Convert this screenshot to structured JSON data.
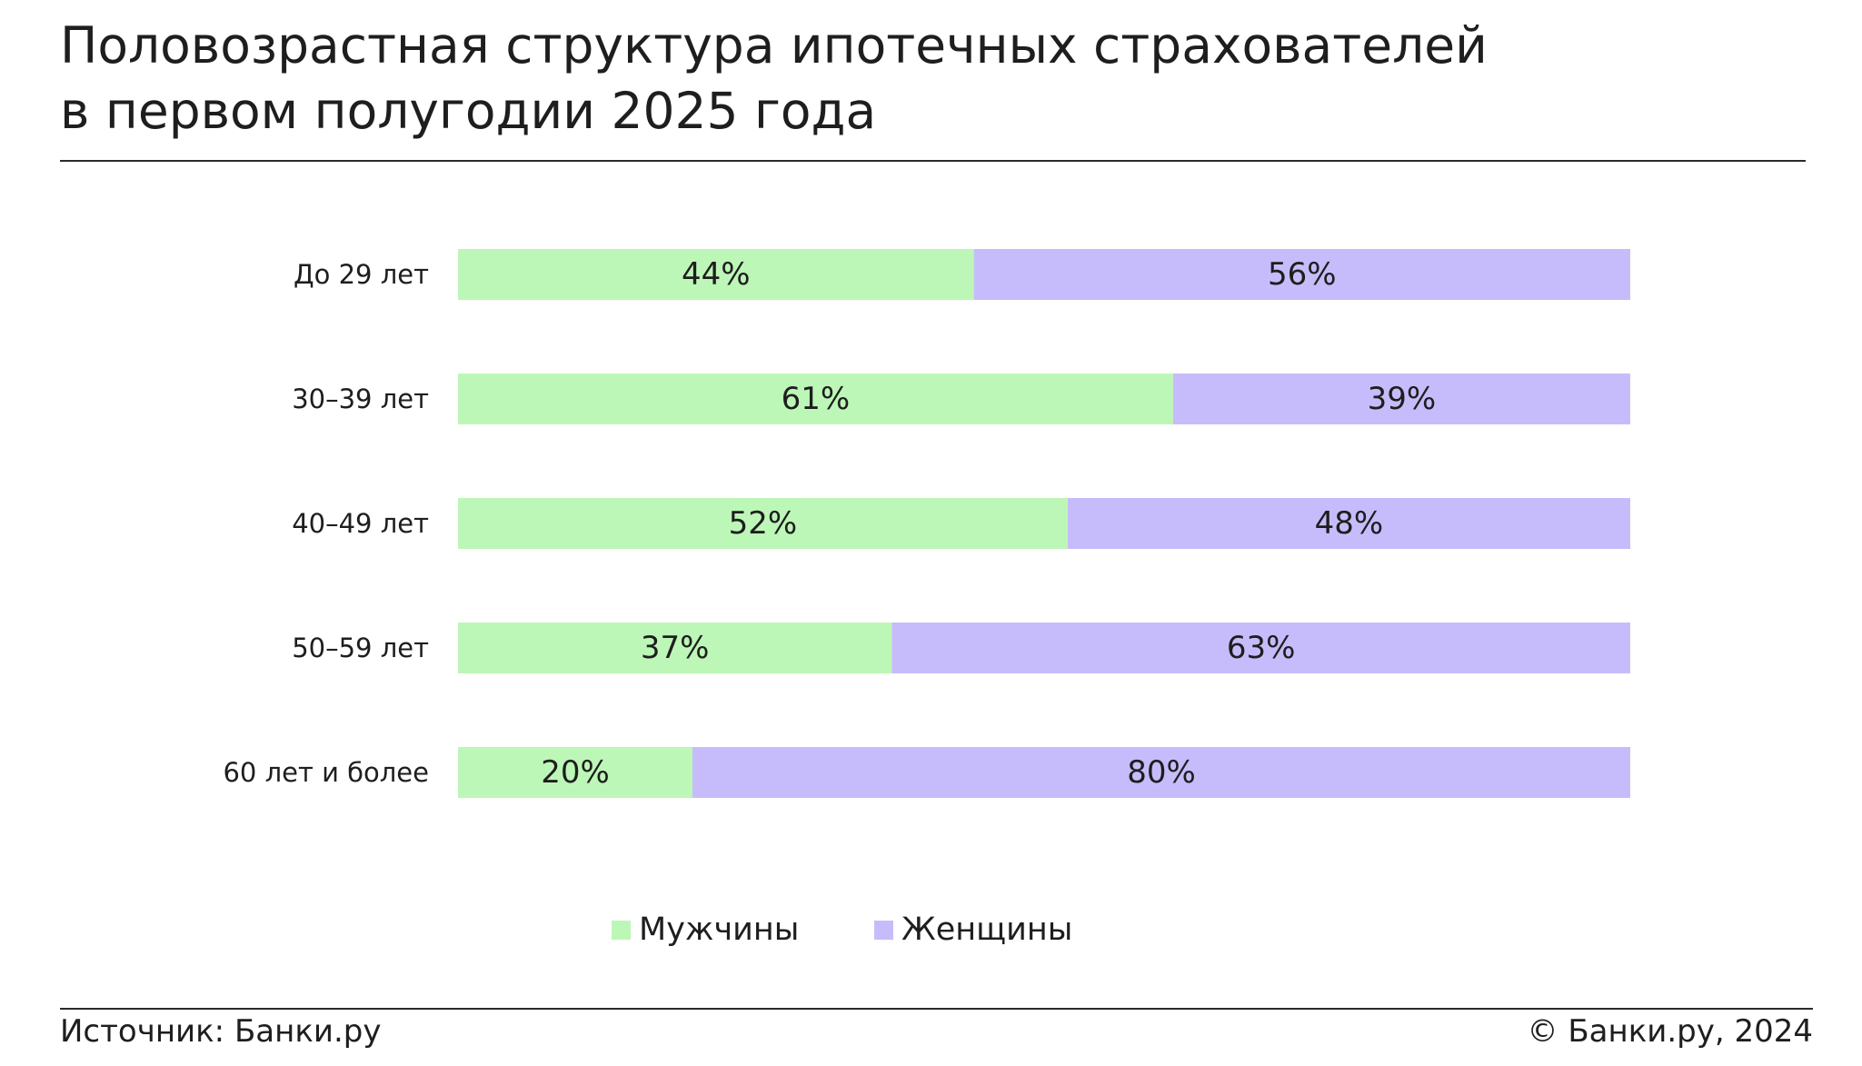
{
  "header": {
    "title_line1": "Половозрастная структура ипотечных страхователей",
    "title_line2": "в первом полугодии 2025 года"
  },
  "chart_data": {
    "type": "bar",
    "orientation": "horizontal",
    "stacked": true,
    "normalized": true,
    "categories": [
      "До 29 лет",
      "30–39 лет",
      "40–49 лет",
      "50–59 лет",
      "60 лет и более"
    ],
    "series": [
      {
        "name": "Мужчины",
        "values": [
          44,
          61,
          52,
          37,
          20
        ],
        "labels": [
          "44%",
          "61%",
          "52%",
          "37%",
          "20%"
        ],
        "color": "#bdf7b7"
      },
      {
        "name": "Женщины",
        "values": [
          56,
          39,
          48,
          63,
          80
        ],
        "labels": [
          "56%",
          "39%",
          "48%",
          "63%",
          "80%"
        ],
        "color": "#c7bcfb"
      }
    ],
    "xlim": [
      0,
      100
    ],
    "grid": false,
    "legend_position": "bottom-center"
  },
  "footer": {
    "source": "Источник: Банки.ру",
    "copyright": "© Банки.ру, 2024"
  }
}
